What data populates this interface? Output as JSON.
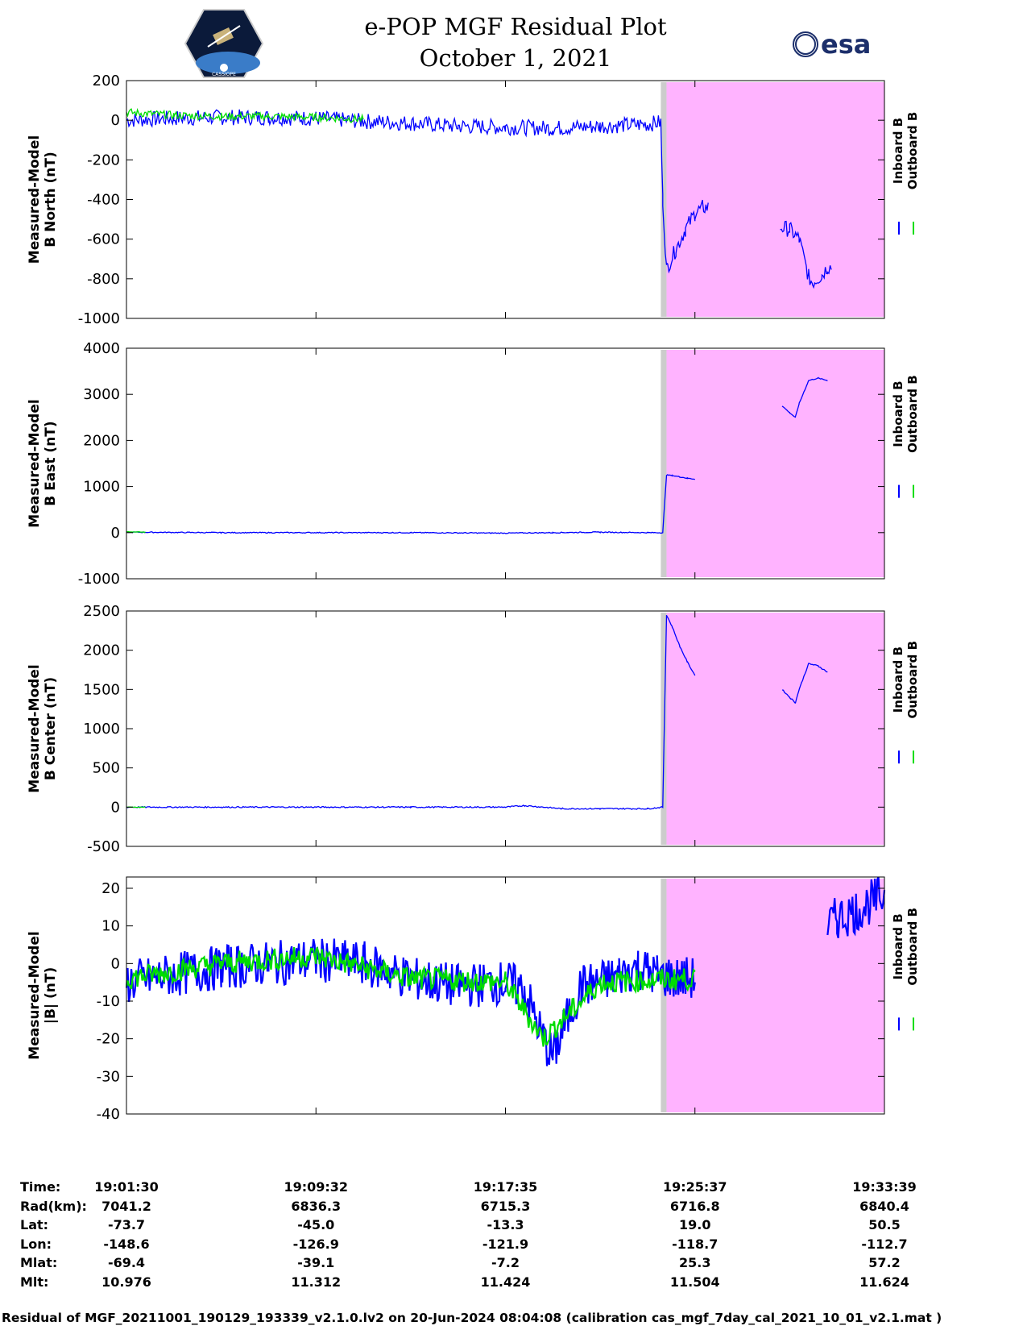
{
  "header": {
    "title_line1": "e-POP MGF Residual Plot",
    "title_line2": "October 1, 2021",
    "left_logo": "satellite-mission-patch",
    "left_logo_text": "CASSIOPE",
    "right_logo_text": "esa"
  },
  "legend": {
    "inboard": "Inboard B",
    "outboard": "Outboard B",
    "inboard_color": "#0000ff",
    "outboard_color": "#00dd00"
  },
  "colors": {
    "shade": "#ffb3ff",
    "gap_bar": "#cccccc"
  },
  "x_ticks": [
    "19:01:30",
    "19:09:32",
    "19:17:35",
    "19:25:37",
    "19:33:39"
  ],
  "chart_data": [
    {
      "type": "line",
      "ylabel_line1": "Measured-Model",
      "ylabel_line2": "B North (nT)",
      "ylim": [
        -1000,
        200
      ],
      "yticks": [
        200,
        0,
        -200,
        -400,
        -600,
        -800,
        -1000
      ],
      "xlim": [
        0,
        4
      ],
      "shaded_x": [
        2.85,
        4.0
      ],
      "gap_x": [
        2.82,
        2.85
      ],
      "series": [
        {
          "name": "Inboard B",
          "x": [
            0,
            0.25,
            0.5,
            0.75,
            1.0,
            1.25,
            1.5,
            1.75,
            2.0,
            2.25,
            2.5,
            2.75,
            2.82,
            2.83,
            2.85,
            2.9,
            2.95,
            3.0,
            3.04,
            3.07,
            3.09,
            3.42,
            3.45,
            3.5,
            3.55,
            3.6,
            3.62,
            3.67,
            3.7,
            3.72,
            4.0
          ],
          "values": [
            0,
            10,
            15,
            15,
            10,
            -5,
            -15,
            -30,
            -35,
            -40,
            -30,
            -20,
            -10,
            -400,
            -750,
            -650,
            -550,
            -470,
            -440,
            -440,
            null,
            null,
            -540,
            -550,
            -600,
            -790,
            -820,
            -780,
            -740,
            -740,
            null
          ]
        },
        {
          "name": "Outboard B",
          "x": [
            0,
            0.25,
            0.5,
            0.75,
            1.0,
            1.25
          ],
          "values": [
            40,
            25,
            20,
            20,
            15,
            5
          ]
        }
      ],
      "noise": [
        40,
        20
      ]
    },
    {
      "type": "line",
      "ylabel_line1": "Measured-Model",
      "ylabel_line2": "B East (nT)",
      "ylim": [
        -1000,
        4000
      ],
      "yticks": [
        4000,
        3000,
        2000,
        1000,
        0,
        -1000
      ],
      "xlim": [
        0,
        4
      ],
      "shaded_x": [
        2.85,
        4.0
      ],
      "gap_x": [
        2.82,
        2.85
      ],
      "series": [
        {
          "name": "Inboard B",
          "x": [
            0,
            0.5,
            1.0,
            1.5,
            2.0,
            2.25,
            2.5,
            2.75,
            2.83,
            2.85,
            2.88,
            2.92,
            2.96,
            3.0,
            3.01,
            3.46,
            3.5,
            3.53,
            3.55,
            3.6,
            3.65,
            3.7,
            3.72,
            4.0
          ],
          "values": [
            10,
            0,
            0,
            0,
            -10,
            0,
            10,
            0,
            0,
            1250,
            1240,
            1210,
            1180,
            1160,
            null,
            2750,
            2600,
            2500,
            2800,
            3300,
            3350,
            3300,
            null,
            null
          ]
        },
        {
          "name": "Outboard B",
          "x": [
            0,
            0.1
          ],
          "values": [
            20,
            10
          ]
        }
      ],
      "noise": [
        10,
        5
      ]
    },
    {
      "type": "line",
      "ylabel_line1": "Measured-Model",
      "ylabel_line2": "B Center (nT)",
      "ylim": [
        -500,
        2500
      ],
      "yticks": [
        2500,
        2000,
        1500,
        1000,
        500,
        0,
        -500
      ],
      "xlim": [
        0,
        4
      ],
      "shaded_x": [
        2.85,
        4.0
      ],
      "gap_x": [
        2.82,
        2.85
      ],
      "series": [
        {
          "name": "Inboard B",
          "x": [
            0,
            0.5,
            1.0,
            1.5,
            2.0,
            2.1,
            2.2,
            2.3,
            2.5,
            2.75,
            2.83,
            2.85,
            2.88,
            2.92,
            2.96,
            3.0,
            3.01,
            3.46,
            3.5,
            3.53,
            3.55,
            3.6,
            3.65,
            3.7,
            3.72,
            4.0
          ],
          "values": [
            0,
            0,
            0,
            0,
            0,
            20,
            0,
            -20,
            -20,
            -20,
            0,
            2450,
            2300,
            2050,
            1850,
            1680,
            null,
            1500,
            1400,
            1330,
            1500,
            1830,
            1800,
            1720,
            null,
            null
          ]
        },
        {
          "name": "Outboard B",
          "x": [
            0,
            0.1
          ],
          "values": [
            0,
            0
          ]
        }
      ],
      "noise": [
        8,
        3
      ]
    },
    {
      "type": "line",
      "ylabel_line1": "Measured-Model",
      "ylabel_line2": "|B| (nT)",
      "ylim": [
        -40,
        23
      ],
      "yticks": [
        20,
        10,
        0,
        -10,
        -20,
        -30,
        -40
      ],
      "xlim": [
        0,
        4
      ],
      "shaded_x": [
        2.85,
        4.0
      ],
      "gap_x": [
        2.82,
        2.85
      ],
      "series": [
        {
          "name": "Inboard B",
          "x": [
            0,
            0.25,
            0.5,
            0.75,
            1.0,
            1.25,
            1.5,
            1.75,
            2.0,
            2.1,
            2.2,
            2.25,
            2.3,
            2.4,
            2.5,
            2.6,
            2.7,
            2.8,
            2.9,
            3.0,
            3.01,
            3.7,
            3.75,
            3.85,
            3.95,
            4.0
          ],
          "values": [
            -5,
            -3,
            -1,
            0,
            1,
            0,
            -4,
            -6,
            -5,
            -7,
            -20,
            -25,
            -18,
            -6,
            -5,
            -3,
            -1,
            -3,
            -4,
            -4,
            null,
            10,
            12,
            14,
            17,
            18
          ]
        },
        {
          "name": "Outboard B",
          "x": [
            0,
            0.5,
            1.0,
            1.5,
            2.0,
            2.2,
            2.5,
            3.0
          ],
          "values": [
            -4,
            0,
            2,
            -4,
            -5,
            -20,
            -5,
            -4
          ]
        }
      ],
      "noise": [
        6,
        3
      ]
    }
  ],
  "info_table": {
    "row_labels": [
      "Time:",
      "Rad(km):",
      "Lat:",
      "Lon:",
      "Mlat:",
      "Mlt:"
    ],
    "columns": [
      [
        "19:01:30",
        "7041.2",
        "-73.7",
        "-148.6",
        "-69.4",
        "10.976"
      ],
      [
        "19:09:32",
        "6836.3",
        "-45.0",
        "-126.9",
        "-39.1",
        "11.312"
      ],
      [
        "19:17:35",
        "6715.3",
        "-13.3",
        "-121.9",
        "-7.2",
        "11.424"
      ],
      [
        "19:25:37",
        "6716.8",
        "19.0",
        "-118.7",
        "25.3",
        "11.504"
      ],
      [
        "19:33:39",
        "6840.4",
        "50.5",
        "-112.7",
        "57.2",
        "11.624"
      ]
    ]
  },
  "footer_text": "Residual of MGF_20211001_190129_193339_v2.1.0.lv2 on 20-Jun-2024 08:04:08 (calibration cas_mgf_7day_cal_2021_10_01_v2.1.mat )"
}
